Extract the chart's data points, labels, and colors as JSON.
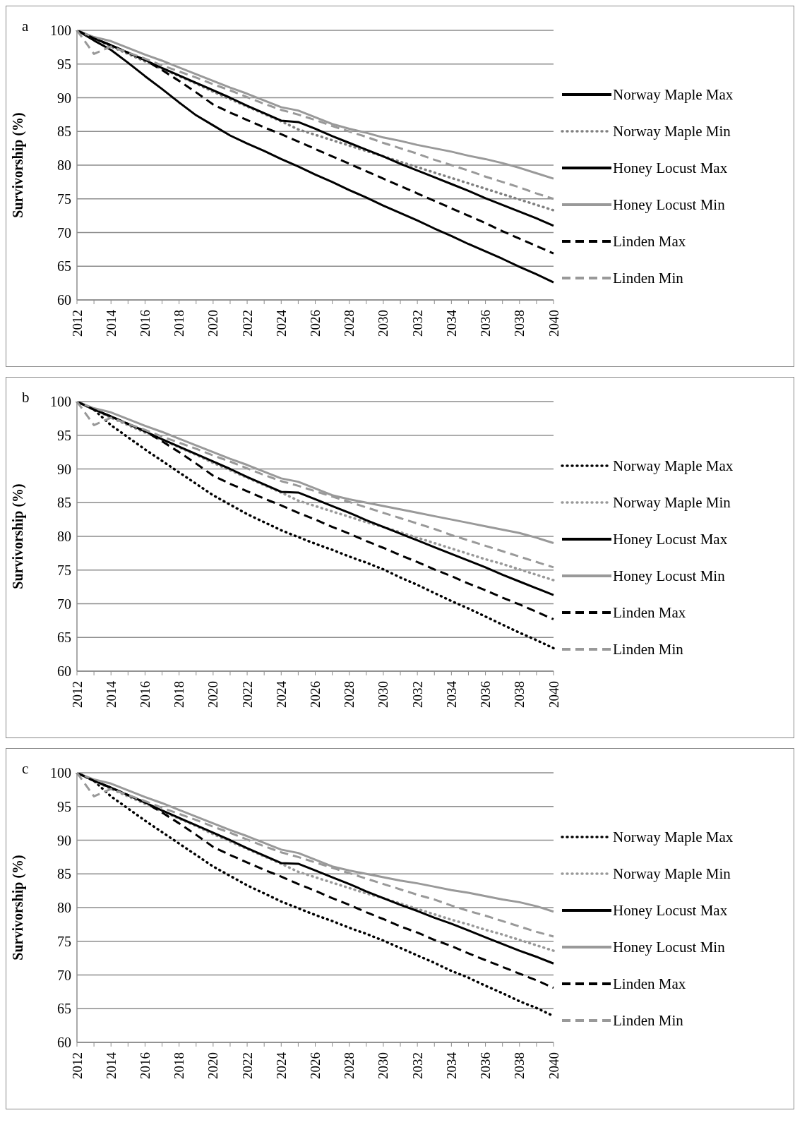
{
  "chart_data": [
    {
      "type": "line",
      "title": "a",
      "ylabel": "Survivorship (%)",
      "categories": [
        "2012",
        null,
        "2014",
        null,
        "2016",
        null,
        "2018",
        null,
        "2020",
        null,
        "2022",
        null,
        "2024",
        null,
        "2026",
        null,
        "2028",
        null,
        "2030",
        null,
        "2032",
        null,
        "2034",
        null,
        "2036",
        null,
        "2038",
        null,
        "2040"
      ],
      "ylim": [
        60,
        100
      ],
      "yticks": [
        60,
        65,
        70,
        75,
        80,
        85,
        90,
        95,
        100
      ],
      "grid": "y",
      "legend": "right",
      "marker": "none",
      "series": [
        {
          "name": "Norway Maple Max",
          "color": "#000000",
          "line_style": "solid",
          "values": [
            100,
            98.5,
            97.1,
            95.2,
            93.2,
            91.3,
            89.3,
            87.4,
            85.9,
            84.4,
            83.2,
            82.1,
            80.9,
            79.8,
            78.6,
            77.5,
            76.3,
            75.2,
            74.0,
            72.9,
            71.8,
            70.6,
            69.5,
            68.3,
            67.2,
            66.1,
            64.9,
            63.8,
            62.6
          ]
        },
        {
          "name": "Norway Maple Min",
          "color": "#808080",
          "line_style": "dotted",
          "values": [
            100,
            98.8,
            97.6,
            96.5,
            95.4,
            94.3,
            93.2,
            92.1,
            90.9,
            89.8,
            88.7,
            87.6,
            86.5,
            85.3,
            84.5,
            83.7,
            82.9,
            82.1,
            81.3,
            80.5,
            79.7,
            78.9,
            78.1,
            77.3,
            76.5,
            75.7,
            74.9,
            74.1,
            73.3
          ]
        },
        {
          "name": "Honey Locust Max",
          "color": "#000000",
          "line_style": "solid",
          "values": [
            100,
            98.8,
            97.8,
            96.7,
            95.6,
            94.4,
            93.3,
            92.2,
            91.1,
            90.0,
            88.8,
            87.7,
            86.6,
            86.4,
            85.4,
            84.3,
            83.3,
            82.3,
            81.3,
            80.2,
            79.2,
            78.2,
            77.2,
            76.2,
            75.1,
            74.1,
            73.1,
            72.1,
            71.0
          ]
        },
        {
          "name": "Honey Locust Min",
          "color": "#999999",
          "line_style": "solid",
          "values": [
            100,
            99.0,
            98.4,
            97.4,
            96.4,
            95.5,
            94.5,
            93.5,
            92.5,
            91.5,
            90.6,
            89.6,
            88.6,
            88.1,
            87.1,
            86.1,
            85.4,
            84.8,
            84.1,
            83.6,
            83.0,
            82.5,
            82.0,
            81.4,
            80.9,
            80.3,
            79.6,
            78.8,
            78.0
          ]
        },
        {
          "name": "Linden Max",
          "color": "#000000",
          "line_style": "dashed",
          "values": [
            100,
            98.8,
            97.8,
            96.7,
            95.6,
            94.1,
            92.5,
            90.8,
            89.0,
            87.8,
            86.7,
            85.6,
            84.6,
            83.5,
            82.4,
            81.3,
            80.2,
            79.1,
            78.0,
            76.9,
            75.8,
            74.7,
            73.6,
            72.5,
            71.4,
            70.2,
            69.1,
            68.0,
            66.9
          ]
        },
        {
          "name": "Linden Min",
          "color": "#999999",
          "line_style": "dashed",
          "values": [
            100,
            96.5,
            97.6,
            96.7,
            95.8,
            94.8,
            93.9,
            93.0,
            92.0,
            91.1,
            90.1,
            89.1,
            88.2,
            87.5,
            86.7,
            85.8,
            85.0,
            84.2,
            83.3,
            82.5,
            81.7,
            80.8,
            80.0,
            79.2,
            78.3,
            77.5,
            76.7,
            75.8,
            75.0
          ]
        }
      ]
    },
    {
      "type": "line",
      "title": "b",
      "ylabel": "Survivorship (%)",
      "categories": [
        "2012",
        null,
        "2014",
        null,
        "2016",
        null,
        "2018",
        null,
        "2020",
        null,
        "2022",
        null,
        "2024",
        null,
        "2026",
        null,
        "2028",
        null,
        "2030",
        null,
        "2032",
        null,
        "2034",
        null,
        "2036",
        null,
        "2038",
        null,
        "2040"
      ],
      "ylim": [
        60,
        100
      ],
      "yticks": [
        60,
        65,
        70,
        75,
        80,
        85,
        90,
        95,
        100
      ],
      "grid": "y",
      "legend": "right",
      "marker": "none",
      "series": [
        {
          "name": "Norway Maple Max",
          "color": "#000000",
          "line_style": "dotted",
          "values": [
            100,
            98.8,
            96.5,
            94.7,
            92.9,
            91.2,
            89.5,
            87.8,
            86.1,
            84.7,
            83.3,
            82.1,
            80.9,
            79.9,
            78.9,
            78.0,
            77.0,
            76.1,
            75.1,
            73.9,
            72.8,
            71.6,
            70.4,
            69.3,
            68.1,
            66.9,
            65.7,
            64.6,
            63.4
          ]
        },
        {
          "name": "Norway Maple Min",
          "color": "#999999",
          "line_style": "dotted",
          "values": [
            100,
            98.8,
            97.6,
            96.5,
            95.4,
            94.3,
            93.2,
            92.1,
            90.9,
            89.8,
            88.7,
            87.6,
            86.5,
            85.3,
            84.5,
            83.7,
            82.9,
            82.1,
            81.4,
            80.6,
            79.8,
            79.0,
            78.2,
            77.4,
            76.6,
            75.9,
            75.1,
            74.3,
            73.5
          ]
        },
        {
          "name": "Honey Locust Max",
          "color": "#000000",
          "line_style": "solid",
          "values": [
            100,
            98.8,
            97.8,
            96.7,
            95.6,
            94.4,
            93.3,
            92.2,
            91.1,
            90.0,
            88.8,
            87.7,
            86.6,
            86.5,
            85.5,
            84.5,
            83.5,
            82.4,
            81.4,
            80.4,
            79.4,
            78.4,
            77.4,
            76.4,
            75.4,
            74.3,
            73.3,
            72.3,
            71.3
          ]
        },
        {
          "name": "Honey Locust Min",
          "color": "#999999",
          "line_style": "solid",
          "values": [
            100,
            99.0,
            98.4,
            97.4,
            96.4,
            95.5,
            94.5,
            93.5,
            92.5,
            91.5,
            90.6,
            89.6,
            88.6,
            88.1,
            87.1,
            86.1,
            85.5,
            85.0,
            84.5,
            84.0,
            83.5,
            83.0,
            82.5,
            82.0,
            81.5,
            81.0,
            80.5,
            79.8,
            79.0
          ]
        },
        {
          "name": "Linden Max",
          "color": "#000000",
          "line_style": "dashed",
          "values": [
            100,
            98.8,
            97.8,
            96.7,
            95.6,
            94.1,
            92.5,
            90.8,
            89.0,
            87.8,
            86.7,
            85.6,
            84.6,
            83.5,
            82.5,
            81.4,
            80.4,
            79.3,
            78.3,
            77.2,
            76.2,
            75.1,
            74.1,
            73.0,
            72.0,
            70.9,
            69.9,
            68.8,
            67.7
          ]
        },
        {
          "name": "Linden Min",
          "color": "#999999",
          "line_style": "dashed",
          "values": [
            100,
            96.5,
            97.6,
            96.7,
            95.8,
            94.8,
            93.9,
            93.0,
            92.0,
            91.1,
            90.1,
            89.1,
            88.2,
            87.5,
            86.7,
            85.9,
            85.1,
            84.3,
            83.5,
            82.7,
            81.9,
            81.1,
            80.2,
            79.4,
            78.6,
            77.8,
            77.0,
            76.2,
            75.4
          ]
        }
      ]
    },
    {
      "type": "line",
      "title": "c",
      "ylabel": "Survivorship (%)",
      "categories": [
        "2012",
        null,
        "2014",
        null,
        "2016",
        null,
        "2018",
        null,
        "2020",
        null,
        "2022",
        null,
        "2024",
        null,
        "2026",
        null,
        "2028",
        null,
        "2030",
        null,
        "2032",
        null,
        "2034",
        null,
        "2036",
        null,
        "2038",
        null,
        "2040"
      ],
      "ylim": [
        60,
        100
      ],
      "yticks": [
        60,
        65,
        70,
        75,
        80,
        85,
        90,
        95,
        100
      ],
      "grid": "y",
      "legend": "right",
      "marker": "none",
      "series": [
        {
          "name": "Norway Maple Max",
          "color": "#000000",
          "line_style": "dotted",
          "values": [
            100,
            98.8,
            96.5,
            94.7,
            92.9,
            91.2,
            89.5,
            87.8,
            86.1,
            84.7,
            83.3,
            82.1,
            80.9,
            79.9,
            78.9,
            78.0,
            77.0,
            76.1,
            75.1,
            74.0,
            72.9,
            71.8,
            70.6,
            69.6,
            68.4,
            67.3,
            66.1,
            65.1,
            63.9
          ]
        },
        {
          "name": "Norway Maple Min",
          "color": "#999999",
          "line_style": "dotted",
          "values": [
            100,
            98.8,
            97.6,
            96.5,
            95.4,
            94.3,
            93.2,
            92.1,
            90.9,
            89.8,
            88.7,
            87.6,
            86.5,
            85.3,
            84.5,
            83.7,
            82.9,
            82.1,
            81.4,
            80.6,
            79.8,
            79.0,
            78.2,
            77.5,
            76.7,
            76.0,
            75.2,
            74.4,
            73.6
          ]
        },
        {
          "name": "Honey Locust Max",
          "color": "#000000",
          "line_style": "solid",
          "values": [
            100,
            98.8,
            97.8,
            96.7,
            95.6,
            94.4,
            93.3,
            92.2,
            91.1,
            90.0,
            88.8,
            87.7,
            86.6,
            86.5,
            85.5,
            84.5,
            83.5,
            82.4,
            81.4,
            80.4,
            79.5,
            78.5,
            77.6,
            76.6,
            75.6,
            74.6,
            73.6,
            72.7,
            71.7
          ]
        },
        {
          "name": "Honey Locust Min",
          "color": "#999999",
          "line_style": "solid",
          "values": [
            100,
            99.0,
            98.4,
            97.4,
            96.4,
            95.5,
            94.5,
            93.5,
            92.5,
            91.5,
            90.6,
            89.6,
            88.6,
            88.1,
            87.1,
            86.1,
            85.5,
            85.0,
            84.5,
            84.0,
            83.6,
            83.1,
            82.6,
            82.2,
            81.7,
            81.2,
            80.8,
            80.2,
            79.4
          ]
        },
        {
          "name": "Linden Max",
          "color": "#000000",
          "line_style": "dashed",
          "values": [
            100,
            98.8,
            97.8,
            96.7,
            95.6,
            94.1,
            92.5,
            90.8,
            89.0,
            87.8,
            86.7,
            85.6,
            84.6,
            83.5,
            82.5,
            81.4,
            80.4,
            79.3,
            78.3,
            77.2,
            76.3,
            75.2,
            74.3,
            73.2,
            72.2,
            71.2,
            70.2,
            69.2,
            68.1
          ]
        },
        {
          "name": "Linden Min",
          "color": "#999999",
          "line_style": "dashed",
          "values": [
            100,
            96.5,
            97.6,
            96.7,
            95.8,
            94.8,
            93.9,
            93.0,
            92.0,
            91.1,
            90.1,
            89.1,
            88.2,
            87.5,
            86.7,
            85.9,
            85.1,
            84.3,
            83.5,
            82.7,
            81.9,
            81.2,
            80.3,
            79.5,
            78.8,
            78.0,
            77.2,
            76.4,
            75.7
          ]
        }
      ]
    }
  ]
}
